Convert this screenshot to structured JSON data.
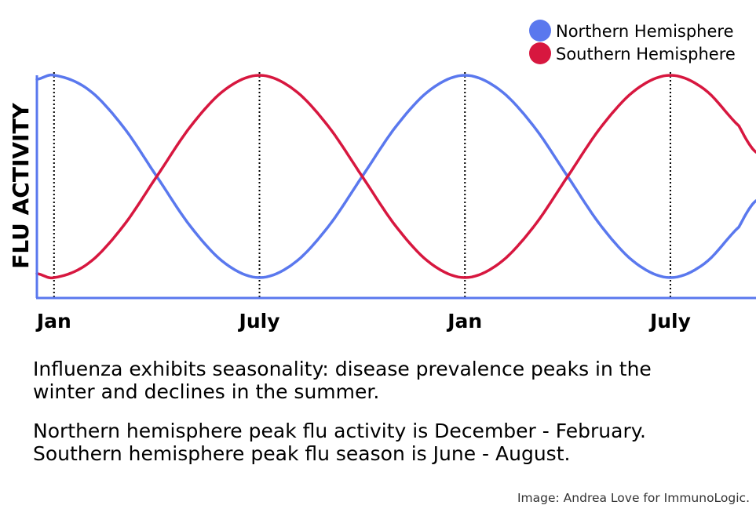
{
  "chart_data": {
    "type": "line",
    "title": "",
    "ylabel": "FLU ACTIVITY",
    "xlabel": "",
    "x_ticks": [
      "Jan",
      "July",
      "Jan",
      "July"
    ],
    "x_tick_months": [
      0,
      6,
      12,
      18
    ],
    "x_range_months": [
      -0.5,
      20.5
    ],
    "y_range": [
      0,
      1
    ],
    "grid": false,
    "tick_lines": "dotted vertical",
    "legend_position": "top-right",
    "series": [
      {
        "name": "Northern Hemisphere",
        "color": "#5a78ee",
        "x_months": [
          -0.5,
          0,
          1,
          2,
          3,
          4,
          5,
          6,
          7,
          8,
          9,
          10,
          11,
          12,
          13,
          14,
          15,
          16,
          17,
          18,
          19,
          20,
          20.5
        ],
        "values": [
          0.98,
          1.0,
          0.93,
          0.75,
          0.5,
          0.25,
          0.07,
          0.0,
          0.07,
          0.25,
          0.5,
          0.75,
          0.93,
          1.0,
          0.93,
          0.75,
          0.5,
          0.25,
          0.07,
          0.0,
          0.07,
          0.25,
          0.38
        ]
      },
      {
        "name": "Southern Hemisphere",
        "color": "#d7173f",
        "x_months": [
          -0.5,
          0,
          1,
          2,
          3,
          4,
          5,
          6,
          7,
          8,
          9,
          10,
          11,
          12,
          13,
          14,
          15,
          16,
          17,
          18,
          19,
          20,
          20.5
        ],
        "values": [
          0.02,
          0.0,
          0.07,
          0.25,
          0.5,
          0.75,
          0.93,
          1.0,
          0.93,
          0.75,
          0.5,
          0.25,
          0.07,
          0.0,
          0.07,
          0.25,
          0.5,
          0.75,
          0.93,
          1.0,
          0.93,
          0.75,
          0.62
        ]
      }
    ],
    "axis_color": "#5a78ee"
  },
  "caption": {
    "paragraph1": [
      "Influenza exhibits seasonality: disease prevalence peaks in the",
      "winter and declines in the summer."
    ],
    "paragraph2": [
      "Northern hemisphere peak flu activity is December - February.",
      "Southern hemisphere peak flu season is June - August."
    ]
  },
  "credit": "Image: Andrea Love for ImmunoLogic."
}
